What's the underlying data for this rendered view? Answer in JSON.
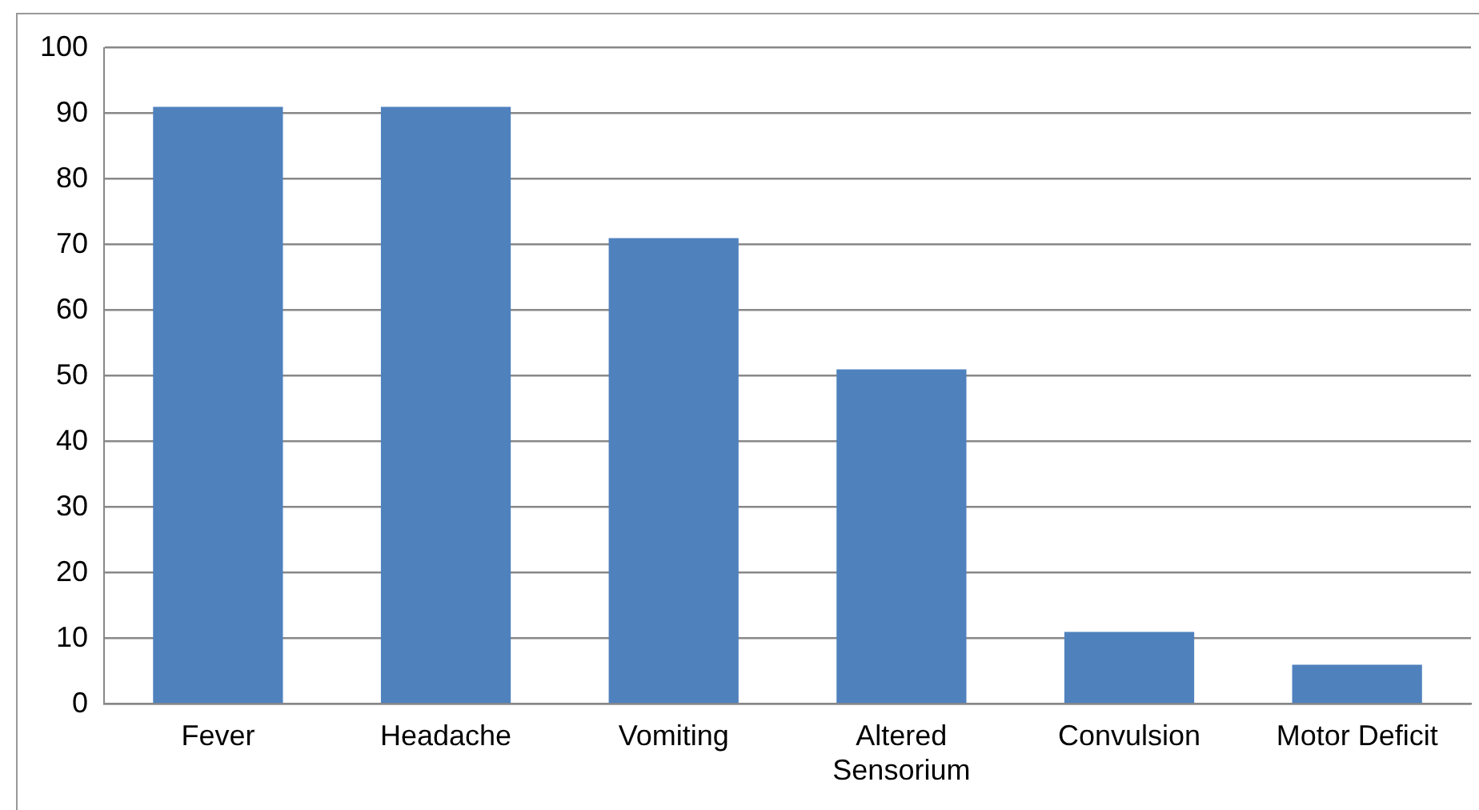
{
  "chart_data": {
    "type": "bar",
    "categories": [
      "Fever",
      "Headache",
      "Vomiting",
      "Altered Sensorium",
      "Convulsion",
      "Motor Deficit"
    ],
    "values": [
      91,
      91,
      71,
      51,
      11,
      6
    ],
    "color": "#4f81bd",
    "ylim": [
      0,
      100
    ],
    "yticks": [
      0,
      10,
      20,
      30,
      40,
      50,
      60,
      70,
      80,
      90,
      100
    ],
    "grid": "y",
    "legend": false
  }
}
